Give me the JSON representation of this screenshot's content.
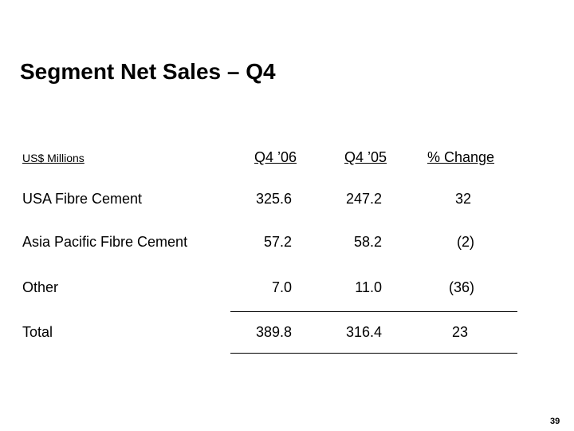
{
  "slide": {
    "title": "Segment Net Sales – Q4",
    "units_label": "US$ Millions",
    "page_number": "39"
  },
  "table": {
    "columns": [
      "Q4 ’06",
      "Q4 ’05",
      "% Change"
    ],
    "rows": [
      {
        "label": "USA Fibre Cement",
        "q4_06": "325.6",
        "q4_05": "247.2",
        "change": "32"
      },
      {
        "label": "Asia Pacific Fibre Cement",
        "q4_06": "57.2",
        "q4_05": "58.2",
        "change": "(2)"
      },
      {
        "label": "Other",
        "q4_06": "7.0",
        "q4_05": "11.0",
        "change": "(36)"
      },
      {
        "label": "Total",
        "q4_06": "389.8",
        "q4_05": "316.4",
        "change": "23"
      }
    ]
  }
}
